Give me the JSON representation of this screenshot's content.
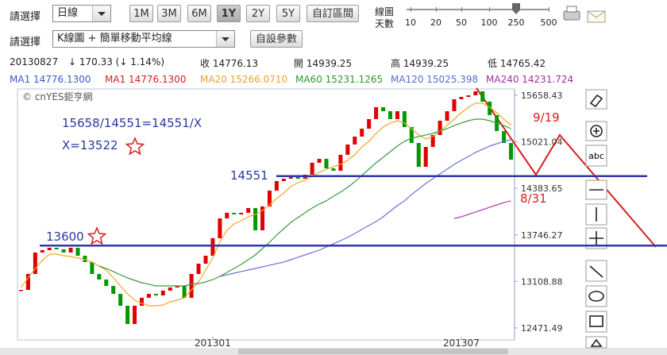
{
  "toolbar": {
    "select_label": "請選擇",
    "period": "日線",
    "ranges": [
      "1M",
      "3M",
      "6M",
      "1Y",
      "2Y",
      "5Y"
    ],
    "custom_range": "自訂區間",
    "days_label": [
      "線圖",
      "天數"
    ],
    "days": [
      "10",
      "20",
      "50",
      "100",
      "250",
      "500"
    ],
    "select_label2": "請選擇",
    "chart_kind": "K線圖 + 簡單移動平均線",
    "settings": "自設參數"
  },
  "quote": {
    "date": "20130827",
    "change": "↓ 170.33 (↓ 1.14%)",
    "close": "收 14776.13",
    "open": "開 14939.25",
    "high": "高 14939.25",
    "low": "低 14765.42"
  },
  "tool_text": "abc",
  "chart_data": {
    "type": "candlestick",
    "copyright": "© cnYES鉅亨網",
    "legend": [
      {
        "text": "MA1 14776.1300",
        "color": "#3a5bc7"
      },
      {
        "text": "MA1 14776.1300",
        "color": "#d42020"
      },
      {
        "text": "MA20 15266.0710",
        "color": "#e8a030"
      },
      {
        "text": "MA60 15231.1265",
        "color": "#2a9a2a"
      },
      {
        "text": "MA120 15025.398",
        "color": "#5a6ad0"
      },
      {
        "text": "MA240 14231.724",
        "color": "#a030a0"
      }
    ],
    "up_color": "#e00000",
    "down_color": "#009900",
    "categories": [
      null,
      null,
      null,
      null,
      null,
      null,
      null,
      null,
      null,
      null,
      null,
      null,
      null,
      null,
      null,
      null,
      null,
      null,
      null,
      null,
      null,
      null,
      null,
      null,
      null,
      null,
      null,
      "201301",
      null,
      null,
      null,
      null,
      null,
      null,
      null,
      null,
      null,
      null,
      null,
      null,
      null,
      null,
      null,
      null,
      null,
      null,
      null,
      null,
      null,
      null,
      null,
      null,
      null,
      null,
      null,
      null,
      null,
      null,
      null,
      null,
      null,
      null,
      "201307",
      null,
      null,
      null,
      null,
      null,
      null,
      null
    ],
    "series": [
      {
        "color": "#333333",
        "values": [
          12993,
          13211,
          13505,
          13537,
          13570,
          13548,
          13505,
          13570,
          13461,
          13374,
          13211,
          13135,
          13048,
          12939,
          12776,
          12526,
          12776,
          12885,
          12939,
          12917,
          12983,
          13026,
          13048,
          12885,
          13211,
          13352,
          13461,
          13701,
          13972,
          14049,
          14027,
          14049,
          14114,
          13809,
          14136,
          14353,
          14483,
          14516,
          14549,
          14516,
          14571,
          14734,
          14788,
          14658,
          14625,
          14843,
          14984,
          15093,
          15201,
          15332,
          15495,
          15440,
          15332,
          15440,
          15223,
          15005,
          14679,
          14951,
          15114,
          15310,
          15440,
          15604,
          15636,
          15658,
          15713,
          15571,
          15386,
          15168,
          15005,
          14776
        ]
      },
      {
        "color": "#f5a623",
        "values": [
          13026,
          13157,
          13287,
          13396,
          13483,
          13483,
          13461,
          13450,
          13429,
          13407,
          13374,
          13320,
          13265,
          13157,
          13048,
          12939,
          12852,
          12809,
          12776,
          12776,
          12787,
          12830,
          12852,
          12885,
          12993,
          13102,
          13265,
          13429,
          13646,
          13809,
          13896,
          13940,
          13994,
          14027,
          14081,
          14157,
          14244,
          14320,
          14408,
          14462,
          14495,
          14549,
          14603,
          14647,
          14680,
          14712,
          14767,
          14843,
          14951,
          15028,
          15136,
          15223,
          15278,
          15310,
          15278,
          15201,
          15115,
          15060,
          15093,
          15169,
          15245,
          15332,
          15419,
          15495,
          15550,
          15550,
          15495,
          15419,
          15332,
          15245
        ]
      },
      {
        "color": "#3a9a3a",
        "values": [
          null,
          null,
          null,
          null,
          null,
          null,
          null,
          null,
          null,
          null,
          null,
          13320,
          13287,
          13244,
          13200,
          13157,
          13124,
          13091,
          13070,
          13048,
          13048,
          13048,
          13048,
          13048,
          13070,
          13081,
          13102,
          13135,
          13178,
          13233,
          13287,
          13342,
          13407,
          13472,
          13559,
          13646,
          13744,
          13831,
          13918,
          13984,
          14049,
          14114,
          14169,
          14212,
          14277,
          14332,
          14397,
          14473,
          14560,
          14647,
          14734,
          14810,
          14886,
          14963,
          15028,
          15071,
          15093,
          15115,
          15136,
          15169,
          15201,
          15245,
          15278,
          15310,
          15332,
          15332,
          15310,
          15278,
          15245,
          15201
        ]
      },
      {
        "color": "#6a70d8",
        "values": [
          null,
          null,
          null,
          null,
          null,
          null,
          null,
          null,
          null,
          null,
          null,
          null,
          null,
          null,
          null,
          null,
          null,
          null,
          null,
          null,
          null,
          null,
          null,
          null,
          null,
          null,
          null,
          null,
          13178,
          13200,
          13222,
          13244,
          13265,
          13287,
          13309,
          13331,
          13353,
          13374,
          13407,
          13440,
          13472,
          13505,
          13537,
          13581,
          13625,
          13668,
          13712,
          13766,
          13821,
          13875,
          13929,
          13994,
          14071,
          14147,
          14212,
          14299,
          14375,
          14451,
          14516,
          14582,
          14647,
          14712,
          14767,
          14821,
          14876,
          14919,
          14963,
          14995,
          15028,
          15050
        ]
      },
      {
        "color": "#b040b0",
        "values": [
          null,
          null,
          null,
          null,
          null,
          null,
          null,
          null,
          null,
          null,
          null,
          null,
          null,
          null,
          null,
          null,
          null,
          null,
          null,
          null,
          null,
          null,
          null,
          null,
          null,
          null,
          null,
          null,
          null,
          null,
          null,
          null,
          null,
          null,
          null,
          null,
          null,
          null,
          null,
          null,
          null,
          null,
          null,
          null,
          null,
          null,
          null,
          null,
          null,
          null,
          null,
          null,
          null,
          null,
          null,
          null,
          null,
          null,
          null,
          null,
          null,
          13972,
          13994,
          14027,
          14060,
          14092,
          14125,
          14157,
          14190,
          14212
        ]
      }
    ],
    "ylim": [
      12308,
      15745
    ],
    "yticks": [
      12471.49,
      13108.88,
      13746.27,
      14383.65,
      15021.04,
      15658.43
    ],
    "hlines": [
      14551,
      13600
    ],
    "notes": [
      "15658/14551=14551/X",
      "X=13522",
      "9/19",
      "8/31"
    ]
  }
}
